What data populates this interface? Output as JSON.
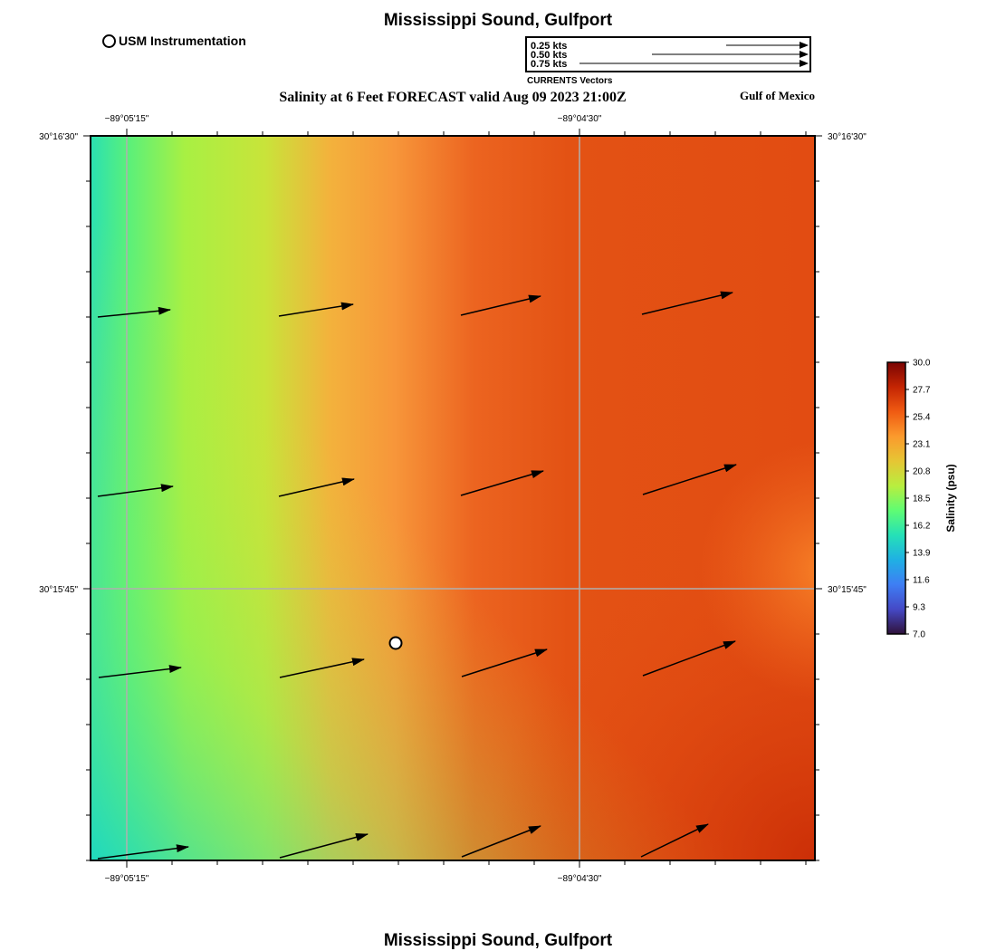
{
  "header": {
    "title_top": "Mississippi Sound, Gulfport",
    "title_bottom": "Mississippi Sound, Gulfport",
    "subtitle": "Salinity at 6 Feet FORECAST valid Aug 09 2023 21:00Z",
    "region": "Gulf of Mexico"
  },
  "station_legend": {
    "label": "USM Instrumentation"
  },
  "vector_legend": {
    "rows": [
      {
        "label": "0.25 kts",
        "speed": 0.25
      },
      {
        "label": "0.50 kts",
        "speed": 0.5
      },
      {
        "label": "0.75 kts",
        "speed": 0.75
      }
    ],
    "caption": "CURRENTS Vectors"
  },
  "axes": {
    "lon_labels": [
      "−89°05'15\"",
      "−89°04'30\""
    ],
    "lat_labels": [
      "30°16'30\"",
      "30°15'45\""
    ]
  },
  "colorbar": {
    "label": "Salinity (psu)",
    "ticks": [
      "30.0",
      "27.7",
      "25.4",
      "23.1",
      "20.8",
      "18.5",
      "16.2",
      "13.9",
      "11.6",
      "9.3",
      "7.0"
    ],
    "min": 7.0,
    "max": 30.0,
    "colors": [
      "#7a0403",
      "#c42503",
      "#f05b12",
      "#fb9a2d",
      "#e6c634",
      "#b8ee3f",
      "#5ffc73",
      "#25e1b7",
      "#1fb0e4",
      "#3e7ef4",
      "#4549c6",
      "#30123b"
    ]
  },
  "station": {
    "name": "USM Instrumentation"
  }
}
